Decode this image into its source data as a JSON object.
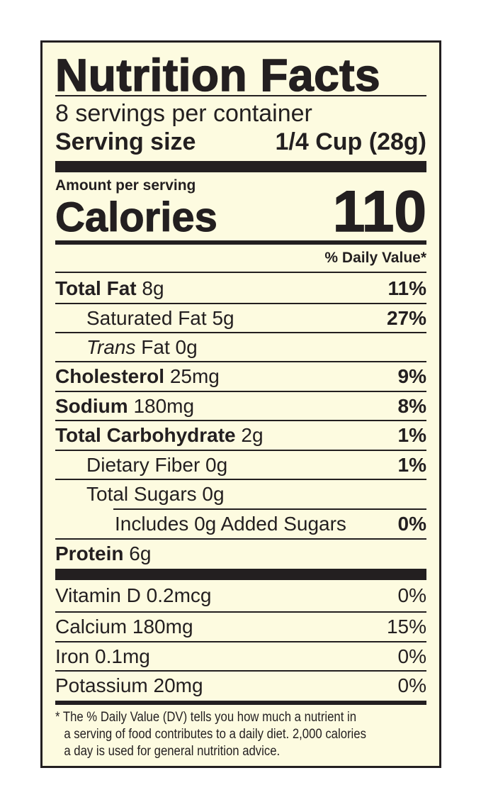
{
  "title": "Nutrition Facts",
  "servings_per_container": "8 servings per container",
  "serving_size": {
    "label": "Serving size",
    "value": "1/4 Cup (28g)"
  },
  "amount_per_serving": "Amount per serving",
  "calories": {
    "label": "Calories",
    "value": "110"
  },
  "daily_value_header": "% Daily Value*",
  "nutrients": [
    {
      "name": "Total Fat",
      "amount": "8g",
      "dv": "11%"
    },
    {
      "name": "Saturated Fat",
      "amount": "5g",
      "dv": "27%"
    },
    {
      "name_italic": "Trans",
      "name": "Fat",
      "amount": "0g",
      "dv": ""
    },
    {
      "name": "Cholesterol",
      "amount": "25mg",
      "dv": "9%"
    },
    {
      "name": "Sodium",
      "amount": "180mg",
      "dv": "8%"
    },
    {
      "name": "Total Carbohydrate",
      "amount": "2g",
      "dv": "1%"
    },
    {
      "name": "Dietary Fiber",
      "amount": "0g",
      "dv": "1%"
    },
    {
      "name": "Total Sugars",
      "amount": "0g",
      "dv": ""
    },
    {
      "name": "Includes 0g Added Sugars",
      "amount": "",
      "dv": "0%"
    },
    {
      "name": "Protein",
      "amount": "6g",
      "dv": ""
    }
  ],
  "vitamins": [
    {
      "name": "Vitamin D 0.2mcg",
      "dv": "0%"
    },
    {
      "name": "Calcium 180mg",
      "dv": "15%"
    },
    {
      "name": "Iron 0.1mg",
      "dv": "0%"
    },
    {
      "name": "Potassium 20mg",
      "dv": "0%"
    }
  ],
  "footnote": [
    "* The % Daily Value (DV) tells you how much a nutrient in",
    "a serving of food contributes to a daily diet. 2,000 calories",
    "a day is used for general nutrition advice."
  ],
  "colors": {
    "background": "#fdfbe0",
    "ink": "#231f20"
  }
}
